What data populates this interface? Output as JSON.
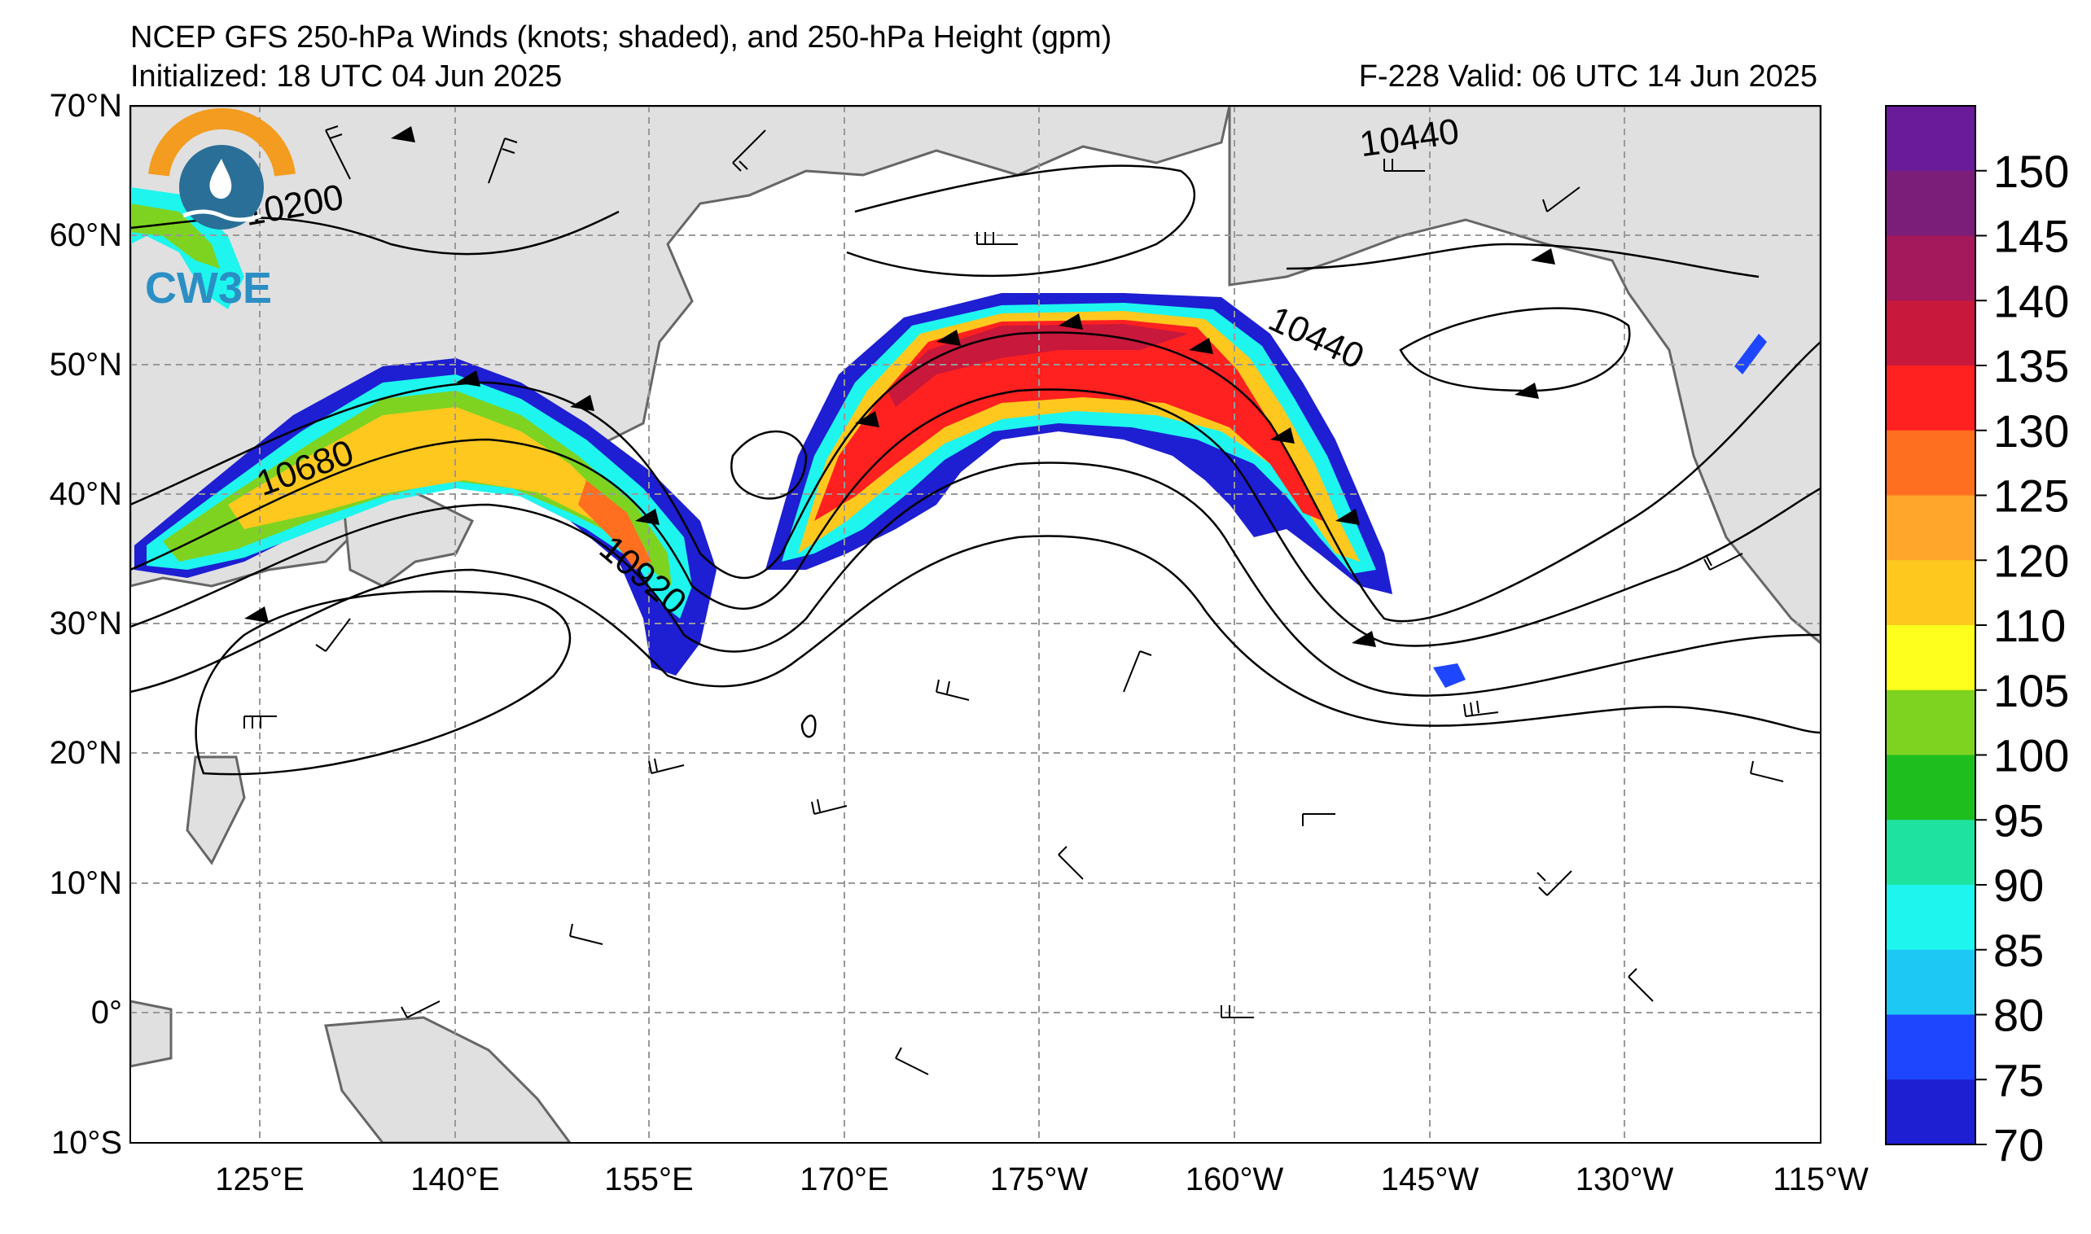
{
  "title": {
    "main": "NCEP GFS 250-hPa Winds (knots; shaded), and 250-hPa Height (gpm)",
    "initialized": "Initialized: 18 UTC 04 Jun 2025",
    "valid": "F-228  Valid: 06 UTC 14 Jun 2025"
  },
  "logo": {
    "text": "CW3E"
  },
  "lat_labels": [
    "70°N",
    "60°N",
    "50°N",
    "40°N",
    "30°N",
    "20°N",
    "10°N",
    "0°",
    "10°S"
  ],
  "lon_labels": [
    "125°E",
    "140°E",
    "155°E",
    "170°E",
    "175°W",
    "160°W",
    "145°W",
    "130°W",
    "115°W"
  ],
  "contour_labels": [
    "10200",
    "10440",
    "10680",
    "10920",
    "10440"
  ],
  "colorbar": {
    "ticks": [
      "150",
      "145",
      "140",
      "135",
      "130",
      "125",
      "120",
      "110",
      "105",
      "100",
      "95",
      "90",
      "85",
      "80",
      "75",
      "70"
    ],
    "colors_top_to_bottom": [
      "#6a1b9a",
      "#7b1e7a",
      "#a3195b",
      "#c8183c",
      "#ff2020",
      "#ff6f1f",
      "#ffa62b",
      "#ffc81e",
      "#ffff1e",
      "#7ed321",
      "#1fbe1f",
      "#1ee3a0",
      "#1ef5ee",
      "#1ec8f5",
      "#1e46ff",
      "#1e1ed2"
    ]
  },
  "colors": {
    "land": "#e0e0e0",
    "coast": "#666666",
    "grid": "#999999"
  }
}
